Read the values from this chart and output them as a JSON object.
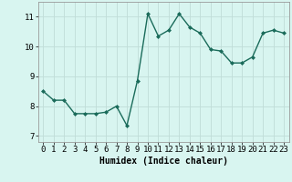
{
  "x": [
    0,
    1,
    2,
    3,
    4,
    5,
    6,
    7,
    8,
    9,
    10,
    11,
    12,
    13,
    14,
    15,
    16,
    17,
    18,
    19,
    20,
    21,
    22,
    23
  ],
  "y": [
    8.5,
    8.2,
    8.2,
    7.75,
    7.75,
    7.75,
    7.8,
    8.0,
    7.35,
    8.85,
    11.1,
    10.35,
    10.55,
    11.1,
    10.65,
    10.45,
    9.9,
    9.85,
    9.45,
    9.45,
    9.65,
    10.45,
    10.55,
    10.45
  ],
  "line_color": "#1a6b5a",
  "marker": "D",
  "marker_size": 2.0,
  "background_color": "#d8f5f0",
  "grid_color": "#c0ddd8",
  "xlabel": "Humidex (Indice chaleur)",
  "xlabel_fontsize": 7,
  "ylim": [
    6.8,
    11.5
  ],
  "xlim": [
    -0.5,
    23.5
  ],
  "yticks": [
    7,
    8,
    9,
    10,
    11
  ],
  "xticks": [
    0,
    1,
    2,
    3,
    4,
    5,
    6,
    7,
    8,
    9,
    10,
    11,
    12,
    13,
    14,
    15,
    16,
    17,
    18,
    19,
    20,
    21,
    22,
    23
  ],
  "tick_fontsize": 6.5,
  "line_width": 1.0
}
